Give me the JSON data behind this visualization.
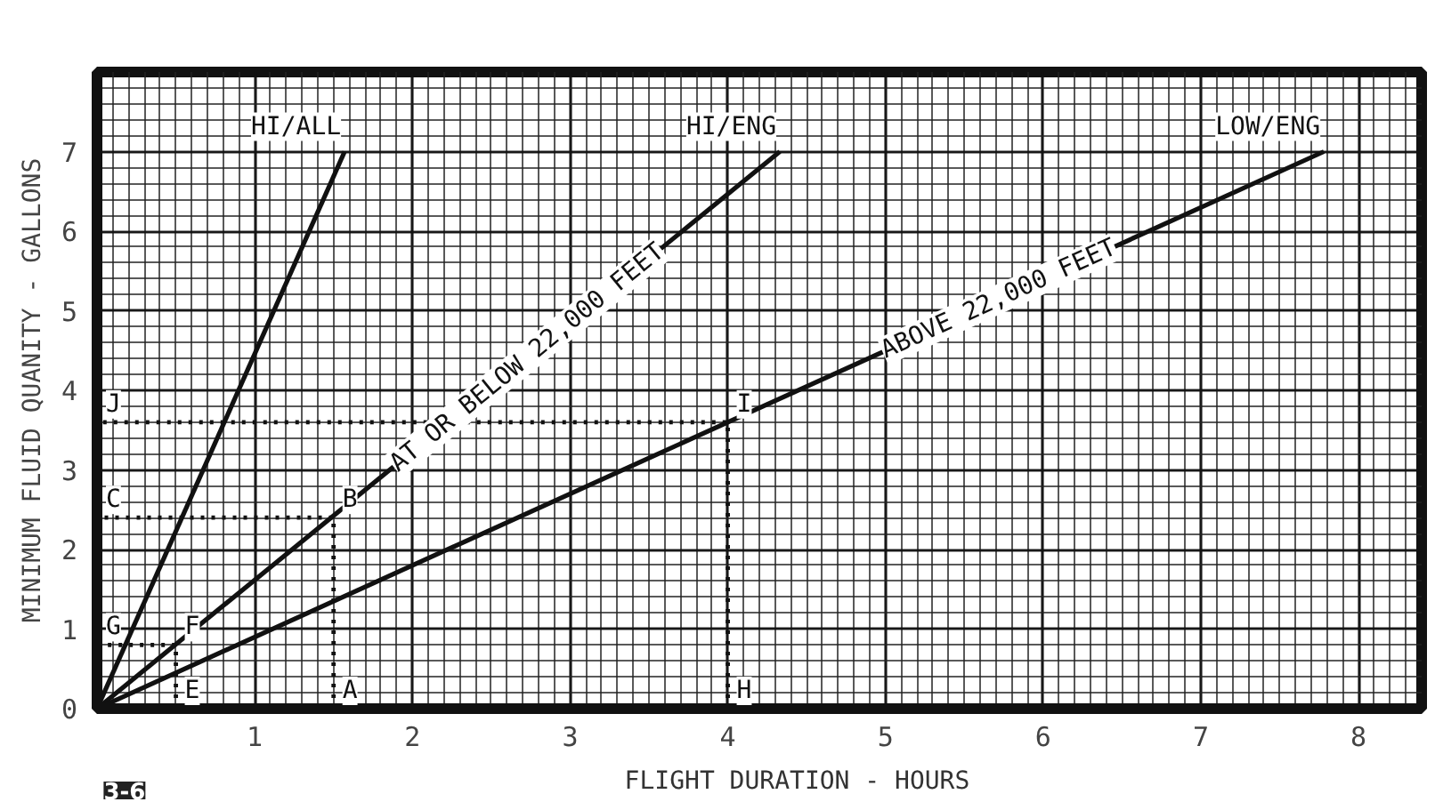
{
  "chart_data": {
    "type": "line",
    "xlabel": "FLIGHT DURATION - HOURS",
    "ylabel": "MINIMUM FLUID QUANITY - GALLONS",
    "xlim": [
      0,
      8.4
    ],
    "ylim": [
      0,
      8
    ],
    "xticks": [
      1,
      2,
      3,
      4,
      5,
      6,
      7,
      8
    ],
    "yticks": [
      0,
      1,
      2,
      3,
      4,
      5,
      6,
      7
    ],
    "grid": true,
    "marker": "none",
    "series": [
      {
        "name": "HI/ALL",
        "color": "#111111",
        "x": [
          0,
          1.57
        ],
        "values": [
          0,
          7
        ]
      },
      {
        "name": "HI/ENG",
        "color": "#111111",
        "x": [
          0,
          4.33
        ],
        "values": [
          0,
          7
        ]
      },
      {
        "name": "LOW/ENG",
        "color": "#111111",
        "x": [
          0,
          7.78
        ],
        "values": [
          0,
          7
        ]
      },
      {
        "color": "#111111",
        "x": [
          1.5,
          1.5,
          0
        ],
        "values": [
          0,
          2.4,
          2.4
        ],
        "line_style": "dotted"
      },
      {
        "color": "#111111",
        "x": [
          0.5,
          0.5,
          0
        ],
        "values": [
          0,
          0.8,
          0.8
        ],
        "line_style": "dotted"
      },
      {
        "color": "#111111",
        "x": [
          4,
          4,
          0
        ],
        "values": [
          0,
          3.6,
          3.6
        ],
        "line_style": "dotted"
      }
    ],
    "annotations": [
      "AT OR BELOW 22,000 FEET",
      "ABOVE 22,000 FEET",
      {
        "text": "A",
        "x": 1.5,
        "y": 0
      },
      {
        "text": "B",
        "x": 1.5,
        "y": 2.4
      },
      {
        "text": "C",
        "x": 0,
        "y": 2.4
      },
      {
        "text": "E",
        "x": 0.5,
        "y": 0
      },
      {
        "text": "F",
        "x": 0.5,
        "y": 0.8
      },
      {
        "text": "G",
        "x": 0,
        "y": 0.8
      },
      {
        "text": "H",
        "x": 4,
        "y": 0
      },
      {
        "text": "I",
        "x": 4,
        "y": 3.6
      },
      {
        "text": "J",
        "x": 0,
        "y": 3.6
      },
      "3-6"
    ]
  }
}
